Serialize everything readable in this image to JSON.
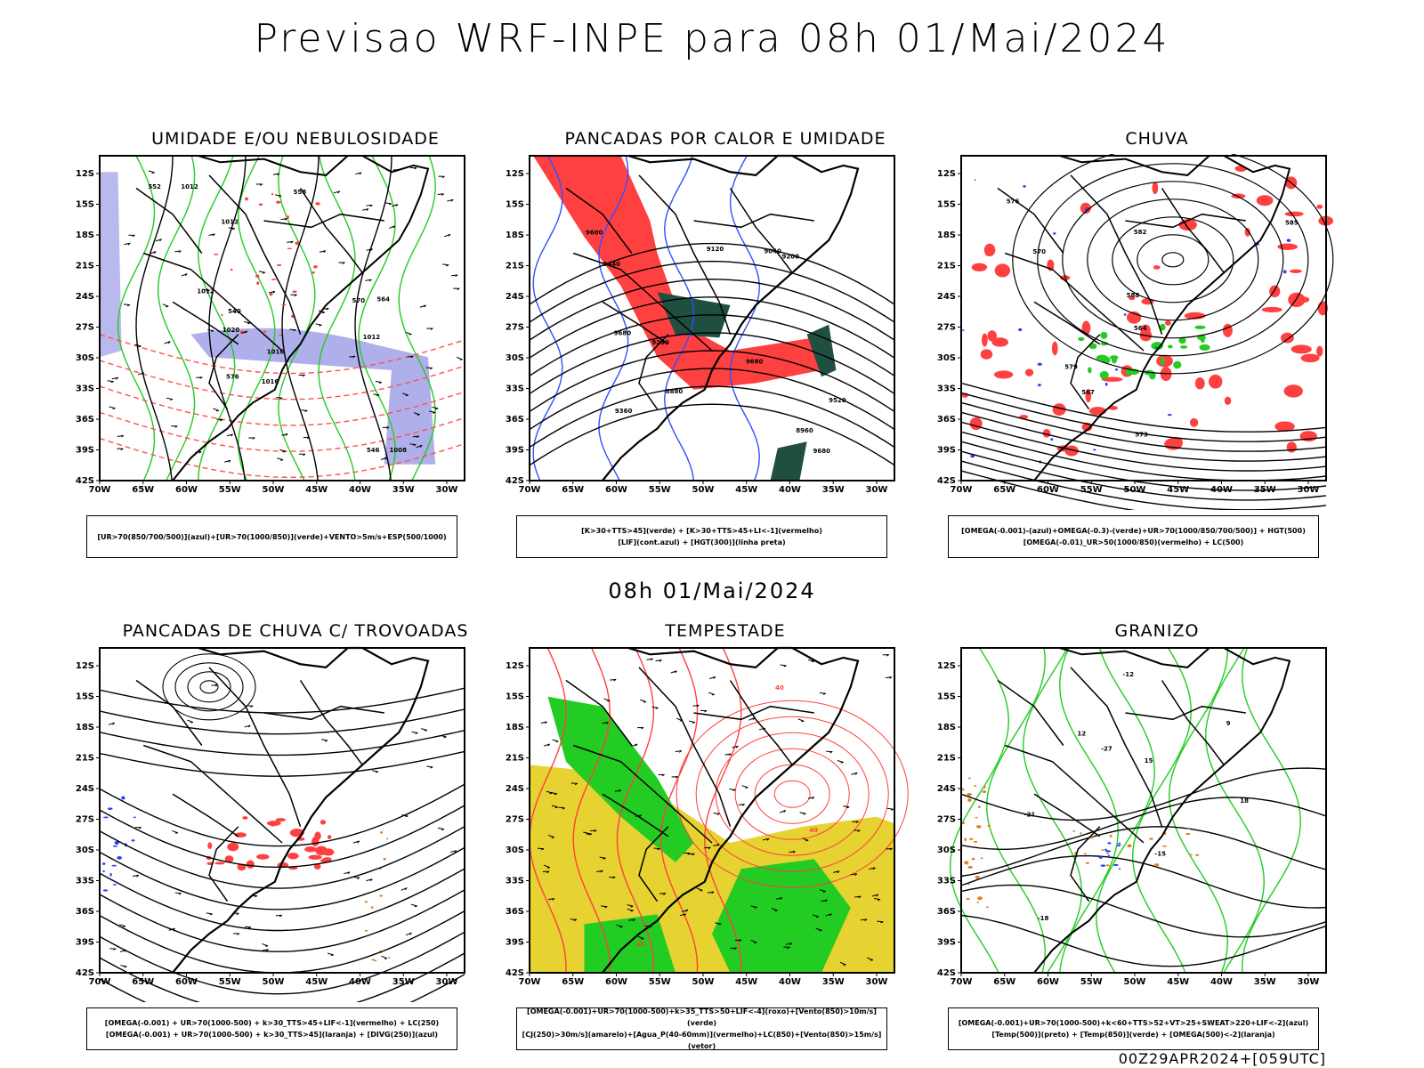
{
  "main_title": "Previsao WRF-INPE  para 08h 01/Mai/2024",
  "mid_time": "08h 01/Mai/2024",
  "footer": "00Z29APR2024+[059UTC]",
  "axes": {
    "lat_labels": [
      "12S",
      "15S",
      "18S",
      "21S",
      "24S",
      "27S",
      "30S",
      "33S",
      "36S",
      "39S",
      "42S"
    ],
    "lon_labels": [
      "70W",
      "65W",
      "60W",
      "55W",
      "50W",
      "45W",
      "40W",
      "35W",
      "30W"
    ]
  },
  "panels": [
    {
      "title": "UMIDADE E/OU NEBULOSIDADE",
      "legend": [
        "[UR>70(850/700/500)](azul)+[UR>70(1000/850)](verde)+VENTO>5m/s+ESP(500/1000)"
      ],
      "contour_labels": [
        "1016",
        "1012",
        "1012",
        "1012",
        "1008",
        "1012",
        "1016",
        "1020",
        "576",
        "570",
        "564",
        "558",
        "552",
        "546",
        "540"
      ]
    },
    {
      "title": "PANCADAS POR CALOR E UMIDADE",
      "legend": [
        "[K>30+TTS>45](verde) + [K>30+TTS>45+LI<-1](vermelho)",
        "[LIF](cont.azul) + [HGT(300)](linha preta)"
      ],
      "contour_labels": [
        "9680",
        "9680",
        "9680",
        "9600",
        "9520",
        "9440",
        "9360",
        "9280",
        "9200",
        "9120",
        "9040",
        "8960",
        "8880"
      ]
    },
    {
      "title": "CHUVA",
      "legend": [
        "[OMEGA(-0.001)-(azul)+OMEGA(-0.3)-(verde)+UR>70(1000/850/700/500)] + HGT(500)",
        "[OMEGA(-0.01)_UR>50(1000/850)(vermelho) + LC(500)"
      ],
      "contour_labels": [
        "588",
        "585",
        "582",
        "579",
        "576",
        "573",
        "570",
        "567",
        "564"
      ]
    },
    {
      "title": "PANCADAS DE CHUVA C/ TROVOADAS",
      "legend": [
        "[OMEGA(-0.001) + UR>70(1000-500) + k>30_TTS>45+LIF<-1](vermelho) + LC(250)",
        "[OMEGA(-0.001) + UR>70(1000-500) + k>30_TTS>45](laranja) + [DIVG(250)](azul)"
      ],
      "contour_labels": []
    },
    {
      "title": "TEMPESTADE",
      "legend": [
        "[OMEGA(-0.001)+UR>70(1000-500)+k>35_TTS>50+LIF<-4](roxo)+[Vento(850)>10m/s](verde)",
        "[CJ(250)>30m/s](amarelo)+[Agua_P(40-60mm)](vermelho)+LC(850)+[Vento(850)>15m/s](vetor)"
      ],
      "contour_labels": [
        "40",
        "40",
        "40"
      ]
    },
    {
      "title": "GRANIZO",
      "legend": [
        "[OMEGA(-0.001)+UR>70(1000-500)+k<60+TTS>52+VT>25+SWEAT>220+LIF<-2](azul)",
        "[Temp(500)](preto) + [Temp(850)](verde) + [OMEGA(500)<-2](laranja)"
      ],
      "contour_labels": [
        "-12",
        "-15",
        "-21",
        "-18",
        "-27",
        "18",
        "15",
        "12",
        "9"
      ]
    }
  ],
  "colors": {
    "blue_humidity": "#9b9be6",
    "green": "#22cc22",
    "red": "#ff4040",
    "dark_green": "#1f4f3f",
    "yellow": "#e6d230",
    "orange": "#e08020",
    "blue": "#2040ff"
  }
}
